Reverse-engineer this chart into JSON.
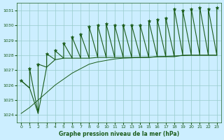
{
  "title": "Graphe pression niveau de la mer (hPa)",
  "bg_color": "#cceeff",
  "grid_color": "#99cccc",
  "line_color": "#1a5c1a",
  "xlim": [
    -0.5,
    23.5
  ],
  "ylim": [
    1023.5,
    1031.5
  ],
  "yticks": [
    1024,
    1025,
    1026,
    1027,
    1028,
    1029,
    1030,
    1031
  ],
  "xticks": [
    0,
    1,
    2,
    3,
    4,
    5,
    6,
    7,
    8,
    9,
    10,
    11,
    12,
    13,
    14,
    15,
    16,
    17,
    18,
    19,
    20,
    21,
    22,
    23
  ],
  "hours": [
    0,
    1,
    2,
    3,
    4,
    5,
    6,
    7,
    8,
    9,
    10,
    11,
    12,
    13,
    14,
    15,
    16,
    17,
    18,
    19,
    20,
    21,
    22,
    23
  ],
  "base_vals": [
    1026.3,
    1025.8,
    1024.1,
    1027.2,
    1027.7,
    1027.8,
    1027.8,
    1027.8,
    1027.8,
    1027.85,
    1027.85,
    1027.85,
    1027.85,
    1027.85,
    1027.85,
    1027.85,
    1027.9,
    1027.9,
    1027.9,
    1028.0,
    1028.0,
    1028.0,
    1028.0,
    1028.0
  ],
  "peak_vals": [
    1026.3,
    1027.1,
    1027.4,
    1028.1,
    1028.3,
    1028.8,
    1029.2,
    1029.4,
    1029.9,
    1030.0,
    1030.1,
    1030.0,
    1030.0,
    1030.0,
    1030.0,
    1030.3,
    1030.4,
    1030.5,
    1031.1,
    1031.0,
    1031.1,
    1031.2,
    1031.1,
    1031.2
  ],
  "trend_vals": [
    1024.1,
    1024.5,
    1025.0,
    1025.5,
    1026.0,
    1026.4,
    1026.8,
    1027.1,
    1027.4,
    1027.55,
    1027.65,
    1027.75,
    1027.8,
    1027.82,
    1027.85,
    1027.87,
    1027.9,
    1027.92,
    1027.95,
    1027.97,
    1028.0,
    1028.0,
    1028.0,
    1028.0
  ]
}
